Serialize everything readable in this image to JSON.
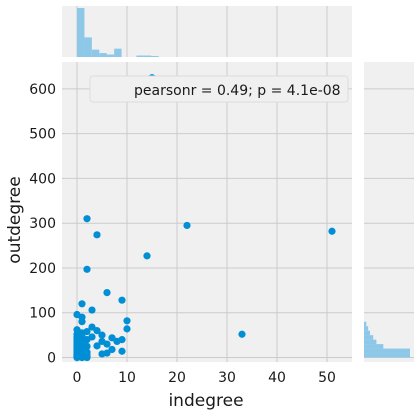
{
  "chart_data": {
    "type": "scatter",
    "title": "",
    "xlabel": "indegree",
    "ylabel": "outdegree",
    "xlim": [
      -3,
      55
    ],
    "ylim": [
      -10,
      660
    ],
    "xticks": [
      0,
      10,
      20,
      30,
      40,
      50
    ],
    "yticks": [
      0,
      100,
      200,
      300,
      400,
      500,
      600
    ],
    "annotation": "pearsonr = 0.49; p = 4.1e-08",
    "grid": true,
    "legend_placement": "top-right",
    "colors": {
      "points": "#008fd5",
      "histogram": "#8ec8e8",
      "grid": "#cbcbcb",
      "plot_background": "#f0f0f0",
      "text": "#1a1a1a"
    },
    "points": [
      {
        "x": 51,
        "y": 282
      },
      {
        "x": 33,
        "y": 52
      },
      {
        "x": 22,
        "y": 295
      },
      {
        "x": 14,
        "y": 227
      },
      {
        "x": 15,
        "y": 625
      },
      {
        "x": 2,
        "y": 310
      },
      {
        "x": 4,
        "y": 274
      },
      {
        "x": 2,
        "y": 197
      },
      {
        "x": 6,
        "y": 145
      },
      {
        "x": 9,
        "y": 128
      },
      {
        "x": 1,
        "y": 120
      },
      {
        "x": 3,
        "y": 106
      },
      {
        "x": 0,
        "y": 96
      },
      {
        "x": 1,
        "y": 90
      },
      {
        "x": 10,
        "y": 82
      },
      {
        "x": 1,
        "y": 80
      },
      {
        "x": 3,
        "y": 68
      },
      {
        "x": 10,
        "y": 64
      },
      {
        "x": 0,
        "y": 62
      },
      {
        "x": 2,
        "y": 58
      },
      {
        "x": 4,
        "y": 60
      },
      {
        "x": 1,
        "y": 55
      },
      {
        "x": 0,
        "y": 52
      },
      {
        "x": 5,
        "y": 50
      },
      {
        "x": 1,
        "y": 48
      },
      {
        "x": 3,
        "y": 46
      },
      {
        "x": 7,
        "y": 44
      },
      {
        "x": 0,
        "y": 42
      },
      {
        "x": 2,
        "y": 40
      },
      {
        "x": 8,
        "y": 36
      },
      {
        "x": 5,
        "y": 36
      },
      {
        "x": 0,
        "y": 35
      },
      {
        "x": 9,
        "y": 40
      },
      {
        "x": 1,
        "y": 33
      },
      {
        "x": 6,
        "y": 30
      },
      {
        "x": 0,
        "y": 28
      },
      {
        "x": 4,
        "y": 26
      },
      {
        "x": 2,
        "y": 25
      },
      {
        "x": 1,
        "y": 22
      },
      {
        "x": 0,
        "y": 20
      },
      {
        "x": 7,
        "y": 18
      },
      {
        "x": 1,
        "y": 16
      },
      {
        "x": 0,
        "y": 15
      },
      {
        "x": 9,
        "y": 14
      },
      {
        "x": 2,
        "y": 12
      },
      {
        "x": 0,
        "y": 10
      },
      {
        "x": 5,
        "y": 8
      },
      {
        "x": 1,
        "y": 8
      },
      {
        "x": 0,
        "y": 6
      },
      {
        "x": 6,
        "y": 10
      },
      {
        "x": 1,
        "y": 4
      },
      {
        "x": 0,
        "y": 3
      },
      {
        "x": 2,
        "y": 2
      },
      {
        "x": 0,
        "y": 1
      },
      {
        "x": 1,
        "y": 1
      },
      {
        "x": 0,
        "y": 0
      },
      {
        "x": 1,
        "y": 0
      },
      {
        "x": 2,
        "y": 0
      },
      {
        "x": 0,
        "y": 24
      },
      {
        "x": 0,
        "y": 30
      },
      {
        "x": 0,
        "y": 38
      },
      {
        "x": 0,
        "y": 46
      },
      {
        "x": 1,
        "y": 28
      },
      {
        "x": 1,
        "y": 38
      },
      {
        "x": 0,
        "y": 12
      },
      {
        "x": 0,
        "y": 18
      },
      {
        "x": 1,
        "y": 12
      },
      {
        "x": 0,
        "y": 8
      },
      {
        "x": 2,
        "y": 6
      },
      {
        "x": 0,
        "y": 4
      }
    ],
    "x_histogram_heights": [
      1.0,
      0.4,
      0.15,
      0.08,
      0.05,
      0.17,
      0.0,
      0.0,
      0.03,
      0.03,
      0.02,
      0.0,
      0.0,
      0.0,
      0.0,
      0.0,
      0.0,
      0.0,
      0.0,
      0.0,
      0.0,
      0.0,
      0.0,
      0.0,
      0.0,
      0.0,
      0.0,
      0.0,
      0.0,
      0.0,
      0.0,
      0.0,
      0.0,
      0.0,
      0.0
    ],
    "y_histogram_heights": [
      1.0,
      1.0,
      0.42,
      0.27,
      0.2,
      0.13,
      0.09,
      0.05
    ]
  }
}
